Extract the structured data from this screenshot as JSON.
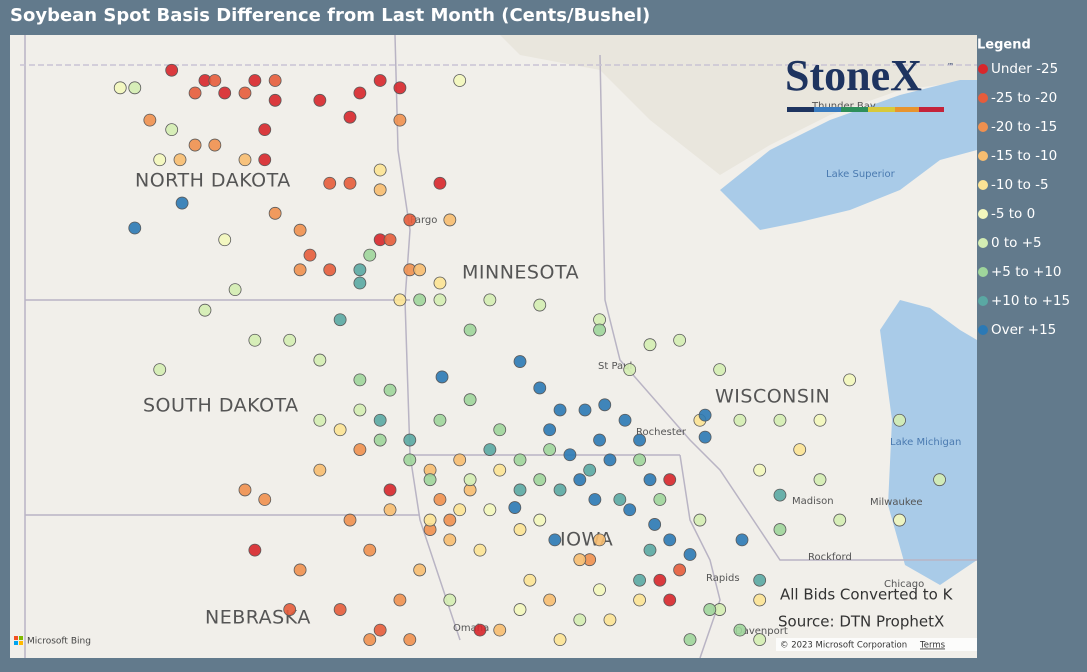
{
  "title": "Soybean Spot Basis Difference from Last Month (Cents/Bushel)",
  "logo": {
    "name": "StoneX",
    "mark": "™"
  },
  "legend": {
    "title": "Legend",
    "items": [
      {
        "label": "Under -25",
        "color": "#d7262b"
      },
      {
        "label": "-25 to -20",
        "color": "#e65c3b"
      },
      {
        "label": "-20 to -15",
        "color": "#f0904f"
      },
      {
        "label": "-15 to -10",
        "color": "#f7bd70"
      },
      {
        "label": "-10 to -5",
        "color": "#fce395"
      },
      {
        "label": "-5 to 0",
        "color": "#f3f7bd"
      },
      {
        "label": "0 to +5",
        "color": "#d4edb3"
      },
      {
        "label": "+5 to +10",
        "color": "#9fd59b"
      },
      {
        "label": "+10 to +15",
        "color": "#5aa8a3"
      },
      {
        "label": "Over +15",
        "color": "#2b79b5"
      }
    ]
  },
  "map": {
    "lon_range": [
      -104.34,
      -85.74
    ],
    "lat_range": [
      41.06,
      49.55
    ],
    "labels": {
      "states": [
        "NORTH DAKOTA",
        "SOUTH DAKOTA",
        "NEBRASKA",
        "MINNESOTA",
        "WISCONSIN",
        "IOWA"
      ],
      "places": [
        "Fargo",
        "St Paul",
        "Rochester",
        "Madison",
        "Milwaukee",
        "Rockford",
        "Chicago",
        "Rapids",
        "Omaha",
        "Davenport",
        "Thunder Bay",
        "Lake Superior",
        "Lake Michigan"
      ]
    },
    "points": [
      [
        -101.23,
        49.07,
        0
      ],
      [
        -100.59,
        48.93,
        0
      ],
      [
        -100.21,
        48.76,
        0
      ],
      [
        -99.63,
        48.93,
        0
      ],
      [
        -99.24,
        48.66,
        0
      ],
      [
        -98.38,
        48.66,
        0
      ],
      [
        -97.61,
        48.76,
        0
      ],
      [
        -97.22,
        48.93,
        0
      ],
      [
        -96.84,
        48.83,
        0
      ],
      [
        -97.8,
        48.43,
        0
      ],
      [
        -99.44,
        48.26,
        0
      ],
      [
        -99.44,
        47.85,
        0
      ],
      [
        -96.07,
        47.53,
        0
      ],
      [
        -97.22,
        46.76,
        0
      ],
      [
        -97.03,
        43.35,
        0
      ],
      [
        -99.63,
        42.53,
        0
      ],
      [
        -95.3,
        41.44,
        0
      ],
      [
        -91.84,
        42.12,
        0
      ],
      [
        -91.65,
        41.85,
        0
      ],
      [
        -91.65,
        43.49,
        0
      ],
      [
        -100.78,
        48.76,
        1
      ],
      [
        -100.4,
        48.93,
        1
      ],
      [
        -99.82,
        48.76,
        1
      ],
      [
        -99.24,
        48.93,
        1
      ],
      [
        -98.19,
        47.53,
        1
      ],
      [
        -97.8,
        47.53,
        1
      ],
      [
        -96.65,
        47.03,
        1
      ],
      [
        -97.03,
        46.76,
        1
      ],
      [
        -98.57,
        46.55,
        1
      ],
      [
        -98.19,
        46.35,
        1
      ],
      [
        -97.99,
        41.72,
        1
      ],
      [
        -97.22,
        41.44,
        1
      ],
      [
        -98.96,
        41.72,
        1
      ],
      [
        -91.46,
        42.26,
        1
      ],
      [
        -101.65,
        48.39,
        2
      ],
      [
        -100.78,
        48.05,
        2
      ],
      [
        -100.4,
        48.05,
        2
      ],
      [
        -99.24,
        47.12,
        2
      ],
      [
        -98.76,
        46.89,
        2
      ],
      [
        -98.76,
        46.35,
        2
      ],
      [
        -96.84,
        48.39,
        2
      ],
      [
        -96.65,
        46.35,
        2
      ],
      [
        -97.61,
        43.9,
        2
      ],
      [
        -97.8,
        42.94,
        2
      ],
      [
        -97.42,
        42.53,
        2
      ],
      [
        -96.07,
        43.22,
        2
      ],
      [
        -97.42,
        41.31,
        2
      ],
      [
        -96.65,
        41.31,
        2
      ],
      [
        -99.44,
        43.22,
        2
      ],
      [
        -99.82,
        43.35,
        2
      ],
      [
        -98.76,
        42.26,
        2
      ],
      [
        -93.19,
        42.4,
        2
      ],
      [
        -95.88,
        42.94,
        2
      ],
      [
        -96.26,
        42.81,
        2
      ],
      [
        -96.84,
        41.85,
        2
      ],
      [
        -101.07,
        47.85,
        3
      ],
      [
        -99.82,
        47.85,
        3
      ],
      [
        -97.22,
        47.44,
        3
      ],
      [
        -96.46,
        46.35,
        3
      ],
      [
        -95.88,
        47.03,
        3
      ],
      [
        -98.38,
        43.62,
        3
      ],
      [
        -97.03,
        43.08,
        3
      ],
      [
        -95.88,
        42.67,
        3
      ],
      [
        -95.49,
        43.35,
        3
      ],
      [
        -96.46,
        42.26,
        3
      ],
      [
        -93.96,
        41.85,
        3
      ],
      [
        -93.38,
        42.4,
        3
      ],
      [
        -94.92,
        41.44,
        3
      ],
      [
        -95.69,
        43.76,
        3
      ],
      [
        -96.26,
        43.62,
        3
      ],
      [
        -93.0,
        42.67,
        3
      ],
      [
        -97.22,
        47.71,
        4
      ],
      [
        -96.84,
        45.94,
        4
      ],
      [
        -96.07,
        46.17,
        4
      ],
      [
        -94.92,
        43.62,
        4
      ],
      [
        -94.53,
        42.81,
        4
      ],
      [
        -95.3,
        42.53,
        4
      ],
      [
        -94.34,
        42.12,
        4
      ],
      [
        -96.26,
        42.94,
        4
      ],
      [
        -92.8,
        41.58,
        4
      ],
      [
        -93.76,
        41.31,
        4
      ],
      [
        -97.99,
        44.17,
        4
      ],
      [
        -89.15,
        43.9,
        4
      ],
      [
        -89.92,
        41.85,
        4
      ],
      [
        -91.07,
        44.3,
        4
      ],
      [
        -92.23,
        41.85,
        4
      ],
      [
        -95.69,
        43.08,
        4
      ],
      [
        -102.22,
        48.83,
        5
      ],
      [
        -101.46,
        47.85,
        5
      ],
      [
        -100.21,
        46.76,
        5
      ],
      [
        -95.69,
        48.93,
        5
      ],
      [
        -95.11,
        43.08,
        5
      ],
      [
        -94.15,
        42.94,
        5
      ],
      [
        -93.0,
        41.99,
        5
      ],
      [
        -89.92,
        43.62,
        5
      ],
      [
        -88.19,
        44.85,
        5
      ],
      [
        -87.23,
        42.94,
        5
      ],
      [
        -94.53,
        41.72,
        5
      ],
      [
        -88.76,
        44.3,
        5
      ],
      [
        -101.94,
        48.83,
        6
      ],
      [
        -101.23,
        48.26,
        6
      ],
      [
        -100.01,
        46.08,
        6
      ],
      [
        -100.59,
        45.8,
        6
      ],
      [
        -99.63,
        45.39,
        6
      ],
      [
        -98.96,
        45.39,
        6
      ],
      [
        -101.46,
        44.99,
        6
      ],
      [
        -98.38,
        45.12,
        6
      ],
      [
        -98.38,
        44.3,
        6
      ],
      [
        -97.61,
        44.44,
        6
      ],
      [
        -96.07,
        45.94,
        6
      ],
      [
        -95.11,
        45.94,
        6
      ],
      [
        -94.15,
        45.87,
        6
      ],
      [
        -93.0,
        45.67,
        6
      ],
      [
        -92.03,
        45.33,
        6
      ],
      [
        -91.46,
        45.39,
        6
      ],
      [
        -92.42,
        44.99,
        6
      ],
      [
        -90.69,
        44.99,
        6
      ],
      [
        -90.3,
        44.3,
        6
      ],
      [
        -89.53,
        44.3,
        6
      ],
      [
        -88.76,
        43.49,
        6
      ],
      [
        -88.38,
        42.94,
        6
      ],
      [
        -91.07,
        42.94,
        6
      ],
      [
        -90.69,
        41.72,
        6
      ],
      [
        -89.92,
        41.31,
        6
      ],
      [
        -87.23,
        44.3,
        6
      ],
      [
        -86.46,
        43.49,
        6
      ],
      [
        -95.88,
        41.85,
        6
      ],
      [
        -93.38,
        41.58,
        6
      ],
      [
        -95.49,
        43.49,
        6
      ],
      [
        -97.42,
        46.55,
        7
      ],
      [
        -96.46,
        45.94,
        7
      ],
      [
        -95.49,
        45.53,
        7
      ],
      [
        -97.61,
        44.85,
        7
      ],
      [
        -97.03,
        44.71,
        7
      ],
      [
        -97.22,
        44.03,
        7
      ],
      [
        -96.65,
        43.76,
        7
      ],
      [
        -96.07,
        44.3,
        7
      ],
      [
        -95.49,
        44.58,
        7
      ],
      [
        -94.92,
        44.17,
        7
      ],
      [
        -94.53,
        43.76,
        7
      ],
      [
        -94.15,
        43.49,
        7
      ],
      [
        -96.26,
        43.49,
        7
      ],
      [
        -93.96,
        43.9,
        7
      ],
      [
        -92.23,
        43.76,
        7
      ],
      [
        -91.84,
        43.22,
        7
      ],
      [
        -90.88,
        41.72,
        7
      ],
      [
        -90.3,
        41.44,
        7
      ],
      [
        -91.26,
        41.31,
        7
      ],
      [
        -89.53,
        42.81,
        7
      ],
      [
        -93.0,
        45.53,
        7
      ],
      [
        -97.99,
        45.67,
        8
      ],
      [
        -97.61,
        46.35,
        8
      ],
      [
        -97.61,
        46.17,
        8
      ],
      [
        -97.22,
        44.3,
        8
      ],
      [
        -96.65,
        44.03,
        8
      ],
      [
        -95.11,
        43.9,
        8
      ],
      [
        -94.53,
        43.35,
        8
      ],
      [
        -93.76,
        43.35,
        8
      ],
      [
        -93.19,
        43.62,
        8
      ],
      [
        -92.61,
        43.22,
        8
      ],
      [
        -92.03,
        42.53,
        8
      ],
      [
        -92.23,
        42.12,
        8
      ],
      [
        -89.92,
        42.12,
        8
      ],
      [
        -89.53,
        43.28,
        8
      ],
      [
        -101.94,
        46.92,
        9
      ],
      [
        -101.03,
        47.26,
        9
      ],
      [
        -96.03,
        44.89,
        9
      ],
      [
        -94.53,
        45.1,
        9
      ],
      [
        -94.15,
        44.74,
        9
      ],
      [
        -93.76,
        44.44,
        9
      ],
      [
        -93.96,
        44.17,
        9
      ],
      [
        -93.28,
        44.44,
        9
      ],
      [
        -92.9,
        44.51,
        9
      ],
      [
        -92.51,
        44.3,
        9
      ],
      [
        -93.0,
        44.03,
        9
      ],
      [
        -93.57,
        43.83,
        9
      ],
      [
        -93.38,
        43.49,
        9
      ],
      [
        -93.09,
        43.22,
        9
      ],
      [
        -92.42,
        43.08,
        9
      ],
      [
        -92.03,
        43.49,
        9
      ],
      [
        -91.94,
        42.88,
        9
      ],
      [
        -91.65,
        42.67,
        9
      ],
      [
        -91.26,
        42.47,
        9
      ],
      [
        -90.97,
        44.07,
        9
      ],
      [
        -90.26,
        42.67,
        9
      ],
      [
        -90.97,
        44.37,
        9
      ],
      [
        -92.23,
        44.03,
        9
      ],
      [
        -92.8,
        43.76,
        9
      ],
      [
        -94.63,
        43.11,
        9
      ],
      [
        -93.86,
        42.67,
        9
      ]
    ]
  },
  "notes": [
    "All Bids Converted to K",
    "Source: DTN ProphetX"
  ],
  "attribution": {
    "bing": "Microsoft Bing",
    "copyright": "© 2023 Microsoft Corporation",
    "terms": "Terms"
  }
}
